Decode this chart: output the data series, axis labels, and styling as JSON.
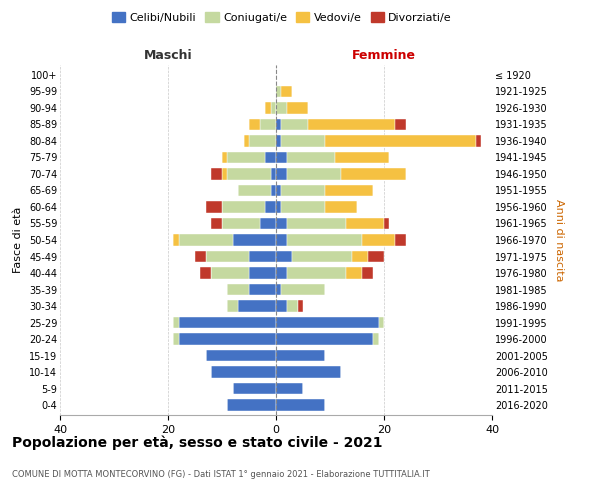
{
  "age_groups": [
    "0-4",
    "5-9",
    "10-14",
    "15-19",
    "20-24",
    "25-29",
    "30-34",
    "35-39",
    "40-44",
    "45-49",
    "50-54",
    "55-59",
    "60-64",
    "65-69",
    "70-74",
    "75-79",
    "80-84",
    "85-89",
    "90-94",
    "95-99",
    "100+"
  ],
  "birth_years": [
    "2016-2020",
    "2011-2015",
    "2006-2010",
    "2001-2005",
    "1996-2000",
    "1991-1995",
    "1986-1990",
    "1981-1985",
    "1976-1980",
    "1971-1975",
    "1966-1970",
    "1961-1965",
    "1956-1960",
    "1951-1955",
    "1946-1950",
    "1941-1945",
    "1936-1940",
    "1931-1935",
    "1926-1930",
    "1921-1925",
    "≤ 1920"
  ],
  "maschi": {
    "celibi": [
      9,
      8,
      12,
      13,
      18,
      18,
      7,
      5,
      5,
      5,
      8,
      3,
      2,
      1,
      1,
      2,
      0,
      0,
      0,
      0,
      0
    ],
    "coniugati": [
      0,
      0,
      0,
      0,
      1,
      1,
      2,
      4,
      7,
      8,
      10,
      7,
      8,
      6,
      8,
      7,
      5,
      3,
      1,
      0,
      0
    ],
    "vedovi": [
      0,
      0,
      0,
      0,
      0,
      0,
      0,
      0,
      0,
      0,
      1,
      0,
      0,
      0,
      1,
      1,
      1,
      2,
      1,
      0,
      0
    ],
    "divorziati": [
      0,
      0,
      0,
      0,
      0,
      0,
      0,
      0,
      2,
      2,
      0,
      2,
      3,
      0,
      2,
      0,
      0,
      0,
      0,
      0,
      0
    ]
  },
  "femmine": {
    "nubili": [
      9,
      5,
      12,
      9,
      18,
      19,
      2,
      1,
      2,
      3,
      2,
      2,
      1,
      1,
      2,
      2,
      1,
      1,
      0,
      0,
      0
    ],
    "coniugate": [
      0,
      0,
      0,
      0,
      1,
      1,
      2,
      8,
      11,
      11,
      14,
      11,
      8,
      8,
      10,
      9,
      8,
      5,
      2,
      1,
      0
    ],
    "vedove": [
      0,
      0,
      0,
      0,
      0,
      0,
      0,
      0,
      3,
      3,
      6,
      7,
      6,
      9,
      12,
      10,
      28,
      16,
      4,
      2,
      0
    ],
    "divorziate": [
      0,
      0,
      0,
      0,
      0,
      0,
      1,
      0,
      2,
      3,
      2,
      1,
      0,
      0,
      0,
      0,
      1,
      2,
      0,
      0,
      0
    ]
  },
  "color_celibi": "#4472c4",
  "color_coniugati": "#c5d9a0",
  "color_vedovi": "#f5c142",
  "color_divorziati": "#c0392b",
  "title": "Popolazione per età, sesso e stato civile - 2021",
  "subtitle": "COMUNE DI MOTTA MONTECORVINO (FG) - Dati ISTAT 1° gennaio 2021 - Elaborazione TUTTITALIA.IT",
  "ylabel_left": "Fasce di età",
  "ylabel_right": "Anni di nascita",
  "xlabel_maschi": "Maschi",
  "xlabel_femmine": "Femmine",
  "xlim": 40,
  "legend_labels": [
    "Celibi/Nubili",
    "Coniugati/e",
    "Vedovi/e",
    "Divorziati/e"
  ],
  "bg_color": "#ffffff",
  "maschi_label_color": "#333333",
  "femmine_label_color": "#cc0000",
  "right_label_color": "#cc6600"
}
